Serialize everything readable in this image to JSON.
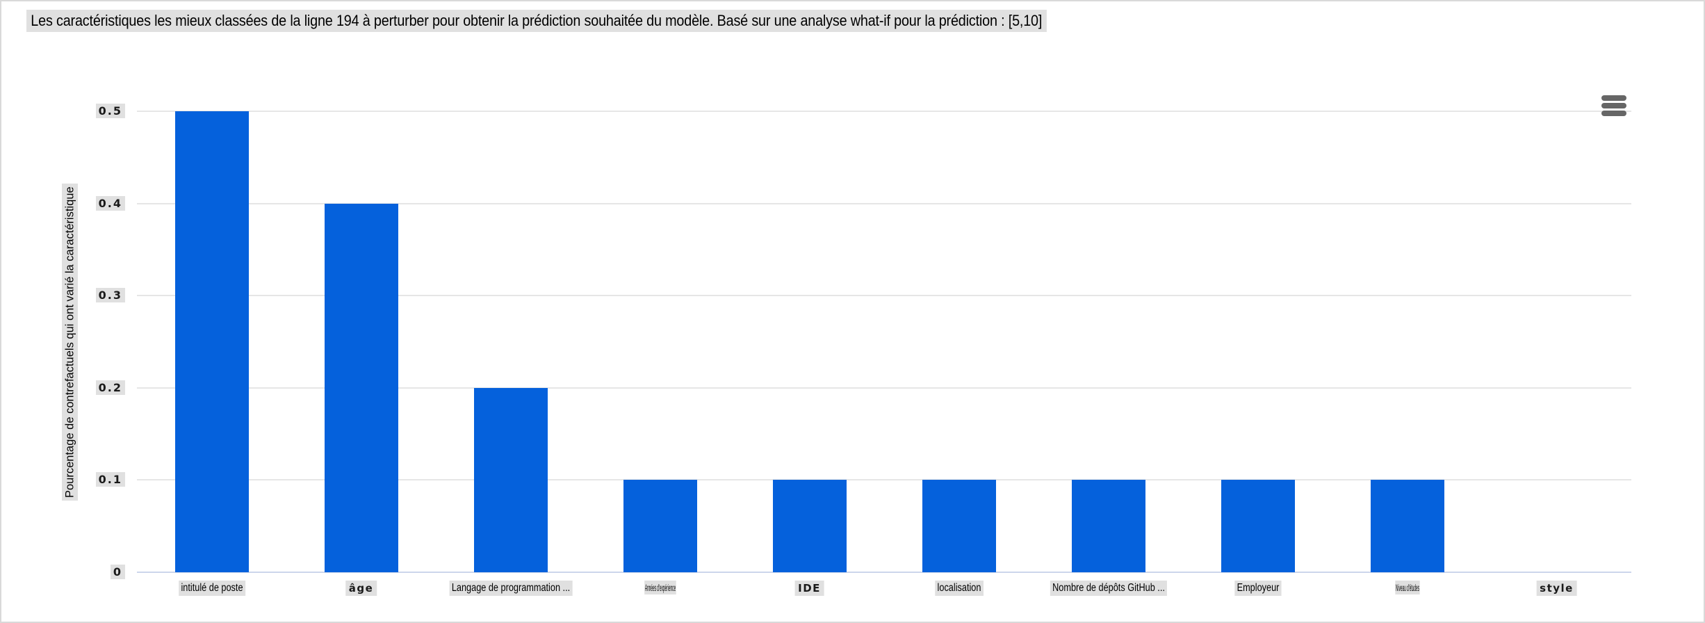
{
  "header": {
    "title": "Les caractéristiques les mieux classées de la ligne 194 à perturber pour obtenir la prédiction souhaitée du modèle. Basé sur une analyse what-if pour la prédiction : [5,10]"
  },
  "toolbar": {
    "menu_icon": "hamburger-menu-icon"
  },
  "chart_data": {
    "type": "bar",
    "title": "Les caractéristiques les mieux classées de la ligne 194 à perturber pour obtenir la prédiction souhaitée du modèle. Basé sur une analyse what-if pour la prédiction : [5,10]",
    "xlabel": "",
    "ylabel": "Pourcentage de contrefactuels qui ont varié la caractéristique",
    "ylim": [
      0,
      0.5
    ],
    "yticks": [
      0,
      0.1,
      0.2,
      0.3,
      0.4,
      0.5
    ],
    "ytick_labels": [
      "0",
      "0.1",
      "0.2",
      "0.3",
      "0.4",
      "0.5"
    ],
    "grid": true,
    "legend": false,
    "bar_color": "#0561dc",
    "grid_color": "#e6e6e6",
    "axis_line_color": "#ccd6eb",
    "text_highlight_color": "#e0e0e0",
    "categories": [
      "intitulé de poste",
      "âge",
      "Langage de programmation ...",
      "Années d'expérience",
      "IDE",
      "localisation",
      "Nombre de dépôts GitHub ...",
      "Employeur",
      "Niveau d'études",
      "style"
    ],
    "values": [
      0.5,
      0.4,
      0.2,
      0.1,
      0.1,
      0.1,
      0.1,
      0.1,
      0.1,
      0
    ],
    "category_label_styles": [
      "condensed",
      "boldwide",
      "condensed",
      "squished",
      "boldwide",
      "condensed",
      "condensed",
      "condensed",
      "squished",
      "boldwide"
    ]
  }
}
